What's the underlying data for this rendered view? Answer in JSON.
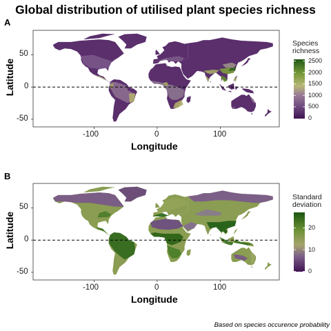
{
  "title": "Global distribution of utilised plant species richness",
  "footnote": "Based on species occurence probability",
  "panels": [
    {
      "tag": "A",
      "xlabel": "Longitude",
      "ylabel": "Latitude",
      "x_ticks": [
        "-100",
        "0",
        "100"
      ],
      "y_ticks": [
        "50",
        "0",
        "-50"
      ],
      "legend": {
        "title_line1": "Species",
        "title_line2": "richness",
        "ticks": [
          "2500",
          "2000",
          "1500",
          "1000",
          "500",
          "0"
        ],
        "range": [
          0,
          2600
        ]
      }
    },
    {
      "tag": "B",
      "xlabel": "Longitude",
      "ylabel": "Latitude",
      "x_ticks": [
        "-100",
        "0",
        "100"
      ],
      "y_ticks": [
        "50",
        "0",
        "-50"
      ],
      "legend": {
        "title_line1": "Standard",
        "title_line2": "deviation",
        "ticks": [
          "20",
          "10",
          "0"
        ],
        "range": [
          0,
          30
        ]
      }
    }
  ],
  "colors": {
    "low": "#4a1f5c",
    "mid_low": "#8a6f95",
    "mid": "#a7b35a",
    "mid_high": "#7a9a3a",
    "high": "#1e5a12",
    "equator_line": "#000000"
  }
}
